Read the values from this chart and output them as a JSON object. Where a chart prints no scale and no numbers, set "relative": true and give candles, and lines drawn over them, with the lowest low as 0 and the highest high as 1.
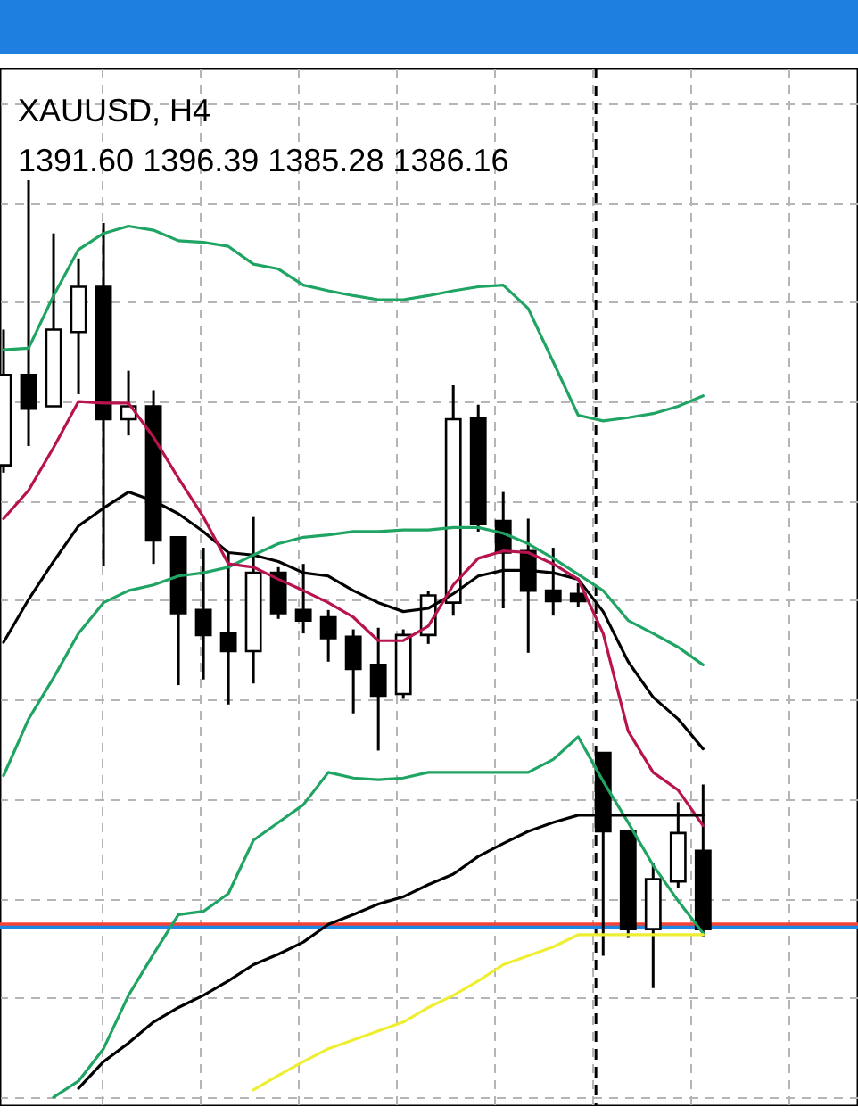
{
  "chart_data": {
    "type": "candlestick",
    "title": "XAUUSD, H4",
    "subtitle": "1391.60 1396.39 1385.28 1386.16",
    "relative": true,
    "grid": true,
    "categories": [
      null,
      null,
      null,
      null,
      null,
      null,
      null,
      null,
      null,
      null,
      null,
      null,
      null,
      null,
      null,
      null,
      null,
      null,
      null,
      null,
      null,
      null,
      null,
      null,
      null,
      null,
      null,
      null,
      null
    ],
    "ohlc": [
      [
        0.647,
        0.815,
        0.638,
        0.759
      ],
      [
        0.759,
        1.0,
        0.671,
        0.717
      ],
      [
        0.72,
        0.934,
        0.72,
        0.815
      ],
      [
        0.812,
        0.903,
        0.735,
        0.868
      ],
      [
        0.868,
        0.947,
        0.523,
        0.704
      ],
      [
        0.704,
        0.764,
        0.684,
        0.72
      ],
      [
        0.72,
        0.74,
        0.525,
        0.554
      ],
      [
        0.558,
        0.558,
        0.375,
        0.464
      ],
      [
        0.468,
        0.545,
        0.382,
        0.437
      ],
      [
        0.439,
        0.539,
        0.351,
        0.417
      ],
      [
        0.417,
        0.583,
        0.377,
        0.514
      ],
      [
        0.514,
        0.521,
        0.457,
        0.464
      ],
      [
        0.468,
        0.525,
        0.439,
        0.455
      ],
      [
        0.459,
        0.468,
        0.404,
        0.433
      ],
      [
        0.435,
        0.444,
        0.34,
        0.395
      ],
      [
        0.4,
        0.446,
        0.294,
        0.362
      ],
      [
        0.364,
        0.444,
        0.358,
        0.437
      ],
      [
        0.437,
        0.492,
        0.426,
        0.486
      ],
      [
        0.477,
        0.746,
        0.461,
        0.704
      ],
      [
        0.706,
        0.722,
        0.565,
        0.574
      ],
      [
        0.578,
        0.614,
        0.47,
        0.539
      ],
      [
        0.541,
        0.581,
        0.415,
        0.492
      ],
      [
        0.492,
        0.545,
        0.461,
        0.479
      ],
      [
        0.488,
        0.501,
        0.472,
        0.479
      ],
      [
        0.291,
        0.291,
        0.04,
        0.194
      ],
      [
        0.194,
        0.194,
        0.062,
        0.073
      ],
      [
        0.073,
        0.155,
        0,
        0.135
      ],
      [
        0.132,
        0.23,
        0.124,
        0.192
      ],
      [
        0.17,
        0.252,
        0.064,
        0.073
      ]
    ],
    "series": [
      {
        "type": "line",
        "color": "#1fa463",
        "values": [
          0.79,
          0.792,
          0.857,
          0.914,
          0.934,
          0.943,
          0.938,
          0.925,
          0.923,
          0.918,
          0.896,
          0.89,
          0.87,
          0.863,
          0.857,
          0.852,
          0.852,
          0.857,
          0.863,
          0.868,
          0.87,
          0.841,
          0.775,
          0.709,
          0.702,
          0.706,
          0.711,
          0.72,
          0.733
        ]
      },
      {
        "type": "line",
        "color": "#000000",
        "values": [
          0.428,
          0.481,
          0.528,
          0.572,
          0.594,
          0.614,
          0.603,
          0.587,
          0.565,
          0.539,
          0.536,
          0.528,
          0.514,
          0.51,
          0.492,
          0.477,
          0.466,
          0.47,
          0.488,
          0.51,
          0.517,
          0.517,
          0.514,
          0.506,
          0.466,
          0.404,
          0.36,
          0.333,
          0.296
        ]
      },
      {
        "type": "line",
        "color": "#1fa463",
        "values": [
          0.263,
          0.333,
          0.384,
          0.439,
          0.477,
          0.492,
          0.499,
          0.51,
          0.514,
          0.521,
          0.536,
          0.55,
          0.558,
          0.561,
          0.565,
          0.565,
          0.567,
          0.567,
          0.57,
          0.57,
          0.563,
          0.55,
          0.532,
          0.512,
          0.492,
          0.455,
          0.439,
          0.422,
          0.4
        ]
      },
      {
        "type": "line",
        "color": "#b8124f",
        "values": [
          0.581,
          0.616,
          0.669,
          0.726,
          0.724,
          0.724,
          0.682,
          0.631,
          0.583,
          0.525,
          0.521,
          0.506,
          0.492,
          0.477,
          0.459,
          0.43,
          0.43,
          0.448,
          0.499,
          0.532,
          0.541,
          0.539,
          0.525,
          0.506,
          0.439,
          0.318,
          0.267,
          0.245,
          0.201
        ]
      },
      {
        "type": "line",
        "color": "#1fa463",
        "values": [
          null,
          null,
          -0.135,
          -0.115,
          -0.075,
          -0.009,
          0.042,
          0.091,
          0.095,
          0.117,
          0.183,
          0.205,
          0.227,
          0.267,
          0.26,
          0.258,
          0.26,
          0.267,
          0.267,
          0.267,
          0.267,
          0.267,
          0.283,
          0.311,
          0.256,
          0.205,
          0.152,
          0.108,
          0.068
        ]
      },
      {
        "type": "line",
        "color": "#000000",
        "values": [
          null,
          null,
          null,
          -0.124,
          -0.091,
          -0.068,
          -0.042,
          -0.024,
          -0.009,
          0.009,
          0.029,
          0.042,
          0.057,
          0.079,
          0.091,
          0.104,
          0.113,
          0.128,
          0.141,
          0.163,
          0.179,
          0.194,
          0.205,
          0.214,
          0.214,
          0.214,
          0.214,
          0.214,
          0.214
        ]
      },
      {
        "type": "line",
        "color": "#eeee33",
        "values": [
          null,
          null,
          null,
          null,
          null,
          null,
          null,
          null,
          null,
          null,
          -0.126,
          -0.108,
          -0.091,
          -0.075,
          -0.064,
          -0.053,
          -0.042,
          -0.024,
          -0.009,
          0.009,
          0.029,
          0.04,
          0.051,
          0.066,
          0.066,
          0.066,
          0.066,
          0.066,
          0.066
        ]
      }
    ],
    "ref_lines": [
      {
        "axis": "y",
        "value": 0.079,
        "color": "#f44336"
      },
      {
        "axis": "y",
        "value": 0.075,
        "color": "#1e88e5"
      }
    ]
  }
}
